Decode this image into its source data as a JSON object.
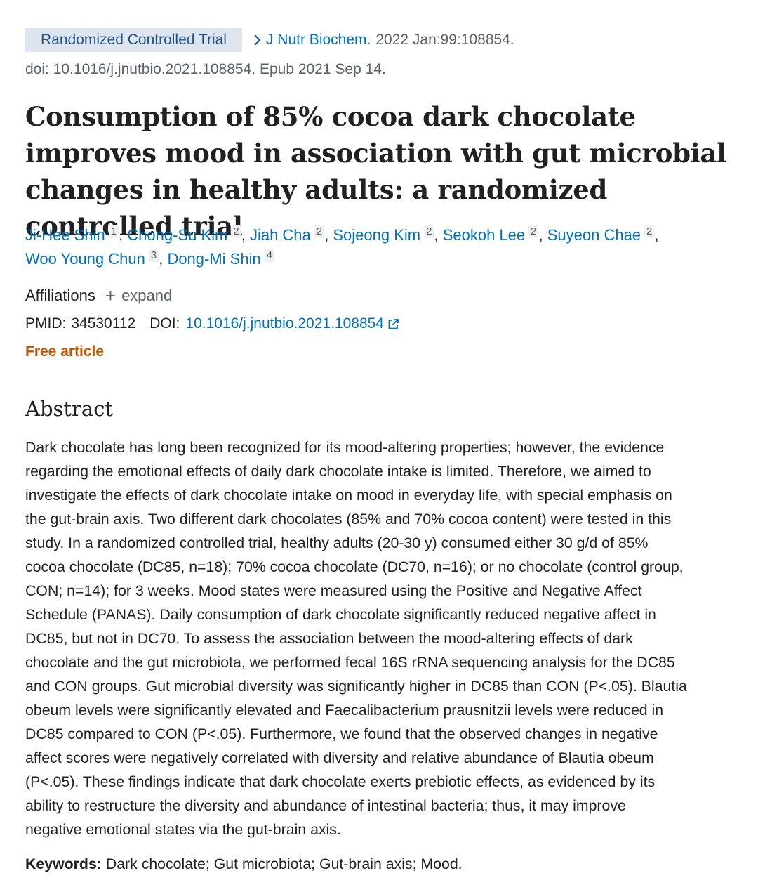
{
  "header": {
    "publication_type": "Randomized Controlled Trial",
    "journal": "J Nutr Biochem.",
    "citation": "2022 Jan:99:108854.",
    "doi_epub": "doi: 10.1016/j.jnutbio.2021.108854. Epub 2021 Sep 14."
  },
  "title": "Consumption of 85% cocoa dark chocolate improves mood in association with gut microbial changes in healthy adults: a randomized controlled trial",
  "authors": [
    {
      "name": "Ji-Hee Shin",
      "aff": "1"
    },
    {
      "name": "Chong-Su Kim",
      "aff": "2"
    },
    {
      "name": "Jiah Cha",
      "aff": "2"
    },
    {
      "name": "Sojeong Kim",
      "aff": "2"
    },
    {
      "name": "Seokoh Lee",
      "aff": "2"
    },
    {
      "name": "Suyeon Chae",
      "aff": "2"
    },
    {
      "name": "Woo Young Chun",
      "aff": "3"
    },
    {
      "name": "Dong-Mi Shin",
      "aff": "4"
    }
  ],
  "affiliations": {
    "label": "Affiliations",
    "expand_label": "expand"
  },
  "identifiers": {
    "pmid_label": "PMID:",
    "pmid": "34530112",
    "doi_label": "DOI:",
    "doi": "10.1016/j.jnutbio.2021.108854"
  },
  "free_article": "Free article",
  "abstract": {
    "heading": "Abstract",
    "lines": [
      "Dark chocolate has long been recognized for its mood-altering properties; however, the evidence",
      "regarding the emotional effects of daily dark chocolate intake is limited. Therefore, we aimed to",
      "investigate the effects of dark chocolate intake on mood in everyday life, with special emphasis on",
      "the gut-brain axis. Two different dark chocolates (85% and 70% cocoa content) were tested in this",
      "study. In a randomized controlled trial, healthy adults (20-30 y) consumed either 30 g/d of 85%",
      "cocoa chocolate (DC85, n=18); 70% cocoa chocolate (DC70, n=16); or no chocolate (control group,",
      "CON; n=14); for 3 weeks. Mood states were measured using the Positive and Negative Affect",
      "Schedule (PANAS). Daily consumption of dark chocolate significantly reduced negative affect in",
      "DC85, but not in DC70. To assess the association between the mood-altering effects of dark",
      "chocolate and the gut microbiota, we performed fecal 16S rRNA sequencing analysis for the DC85",
      "and CON groups. Gut microbial diversity was significantly higher in DC85 than CON (P<.05). Blautia",
      "obeum levels were significantly elevated and Faecalibacterium prausnitzii levels were reduced in",
      "DC85 compared to CON (P<.05). Furthermore, we found that the observed changes in negative",
      "affect scores were negatively correlated with diversity and relative abundance of Blautia obeum",
      "(P<.05). These findings indicate that dark chocolate exerts prebiotic effects, as evidenced by its",
      "ability to restructure the diversity and abundance of intestinal bacteria; thus, it may improve",
      "negative emotional states via the gut-brain axis."
    ]
  },
  "keywords": {
    "label": "Keywords:",
    "text": "Dark chocolate; Gut microbiota; Gut-brain axis; Mood."
  },
  "icons": {
    "chevron": "chevron-right-icon",
    "plus": "plus-icon",
    "external_link": "external-link-icon"
  },
  "colors": {
    "link": "#0071bc",
    "badge_bg": "#dfe5ee",
    "badge_text": "#20558a",
    "free_article": "#c05600",
    "muted": "#5b616b"
  }
}
